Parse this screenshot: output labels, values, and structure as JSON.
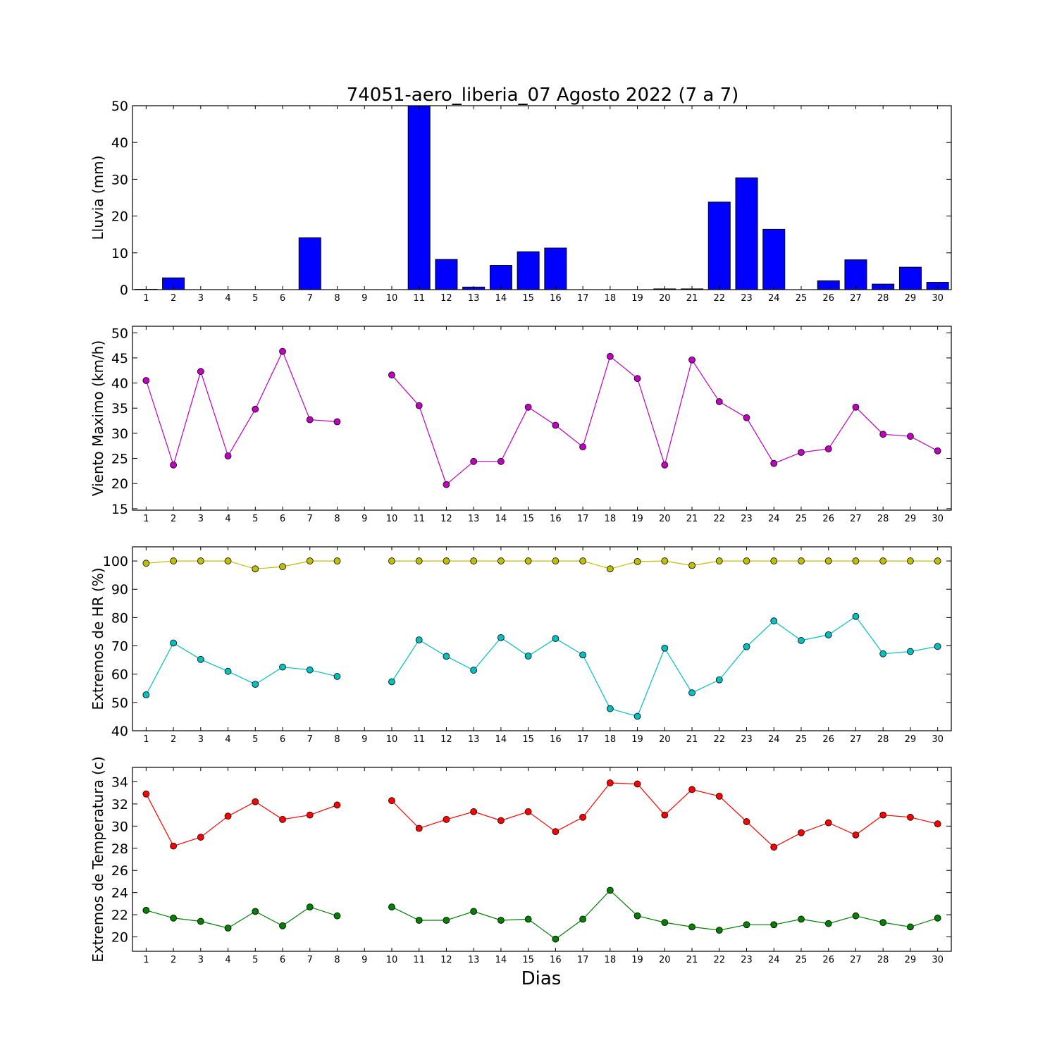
{
  "figure": {
    "title": "74051-aero_liberia_07 Agosto 2022  (7 a 7)",
    "xlabel": "Dias"
  },
  "chart_data": [
    {
      "type": "bar",
      "ylabel": "Lluvia (mm)",
      "ylim": [
        0,
        50
      ],
      "yticks": [
        0,
        10,
        20,
        30,
        40,
        50
      ],
      "x": [
        1,
        2,
        3,
        4,
        5,
        6,
        7,
        8,
        9,
        10,
        11,
        12,
        13,
        14,
        15,
        16,
        17,
        18,
        19,
        20,
        21,
        22,
        23,
        24,
        25,
        26,
        27,
        28,
        29,
        30
      ],
      "xlim": [
        0.5,
        30.5
      ],
      "series": [
        {
          "color": "#0000ff",
          "values": [
            0.1,
            3.2,
            0,
            0,
            0,
            0,
            14.1,
            0,
            0,
            0,
            50,
            8.2,
            0.7,
            6.6,
            10.3,
            11.3,
            0,
            0,
            0,
            0.2,
            0.2,
            23.8,
            30.4,
            16.4,
            0,
            2.4,
            8.1,
            1.5,
            6.1,
            2.0
          ]
        }
      ]
    },
    {
      "type": "line",
      "ylabel": "Viento Maximo (km/h)",
      "ylim": [
        14.7,
        51.3
      ],
      "yticks": [
        15,
        20,
        25,
        30,
        35,
        40,
        45,
        50
      ],
      "x": [
        1,
        2,
        3,
        4,
        5,
        6,
        7,
        8,
        9,
        10,
        11,
        12,
        13,
        14,
        15,
        16,
        17,
        18,
        19,
        20,
        21,
        22,
        23,
        24,
        25,
        26,
        27,
        28,
        29,
        30
      ],
      "xlim": [
        0.5,
        30.5
      ],
      "series": [
        {
          "color": "#bf00bf",
          "values": [
            40.5,
            23.7,
            42.3,
            25.5,
            34.8,
            46.3,
            32.7,
            32.3,
            null,
            41.6,
            35.5,
            19.8,
            24.4,
            24.4,
            35.2,
            31.6,
            27.3,
            45.3,
            40.9,
            23.7,
            44.6,
            36.3,
            33.1,
            24.0,
            26.2,
            26.9,
            35.2,
            29.8,
            29.4,
            26.5
          ]
        }
      ]
    },
    {
      "type": "line",
      "ylabel": "Extremos de HR (%)",
      "ylim": [
        40,
        105
      ],
      "yticks": [
        40,
        50,
        60,
        70,
        80,
        90,
        100
      ],
      "x": [
        1,
        2,
        3,
        4,
        5,
        6,
        7,
        8,
        9,
        10,
        11,
        12,
        13,
        14,
        15,
        16,
        17,
        18,
        19,
        20,
        21,
        22,
        23,
        24,
        25,
        26,
        27,
        28,
        29,
        30
      ],
      "xlim": [
        0.5,
        30.5
      ],
      "series": [
        {
          "color": "#bfbf00",
          "values": [
            99.2,
            100,
            100,
            100,
            97.2,
            98,
            100,
            100,
            null,
            100,
            100,
            100,
            100,
            100,
            100,
            100,
            100,
            97.2,
            99.8,
            100,
            98.4,
            100,
            100,
            100,
            100,
            100,
            100,
            100,
            100,
            100
          ]
        },
        {
          "color": "#00bfbf",
          "values": [
            52.7,
            71.0,
            65.2,
            61.0,
            56.4,
            62.5,
            61.5,
            59.2,
            null,
            57.3,
            72.1,
            66.3,
            61.4,
            72.9,
            66.4,
            72.6,
            66.8,
            47.8,
            45.1,
            69.2,
            53.4,
            58.0,
            69.7,
            78.8,
            71.9,
            73.9,
            80.4,
            67.2,
            68.0,
            69.8
          ]
        }
      ]
    },
    {
      "type": "line",
      "ylabel": "Extremos de Temperatura (c)",
      "ylim": [
        18.7,
        35.3
      ],
      "yticks": [
        20,
        22,
        24,
        26,
        28,
        30,
        32,
        34
      ],
      "x": [
        1,
        2,
        3,
        4,
        5,
        6,
        7,
        8,
        9,
        10,
        11,
        12,
        13,
        14,
        15,
        16,
        17,
        18,
        19,
        20,
        21,
        22,
        23,
        24,
        25,
        26,
        27,
        28,
        29,
        30
      ],
      "xlim": [
        0.5,
        30.5
      ],
      "series": [
        {
          "color": "#ff0000",
          "values": [
            32.9,
            28.2,
            29.0,
            30.9,
            32.2,
            30.6,
            31.0,
            31.9,
            null,
            32.3,
            29.8,
            30.6,
            31.3,
            30.5,
            31.3,
            29.5,
            30.8,
            33.9,
            33.8,
            31.0,
            33.3,
            32.7,
            30.4,
            28.1,
            29.4,
            30.3,
            29.2,
            31.0,
            30.8,
            30.2
          ]
        },
        {
          "color": "#007f00",
          "values": [
            22.4,
            21.7,
            21.4,
            20.8,
            22.3,
            21.0,
            22.7,
            21.9,
            null,
            22.7,
            21.5,
            21.5,
            22.3,
            21.5,
            21.6,
            19.8,
            21.6,
            24.2,
            21.9,
            21.3,
            20.9,
            20.6,
            21.1,
            21.1,
            21.6,
            21.2,
            21.9,
            21.3,
            20.9,
            21.7
          ]
        }
      ]
    }
  ]
}
